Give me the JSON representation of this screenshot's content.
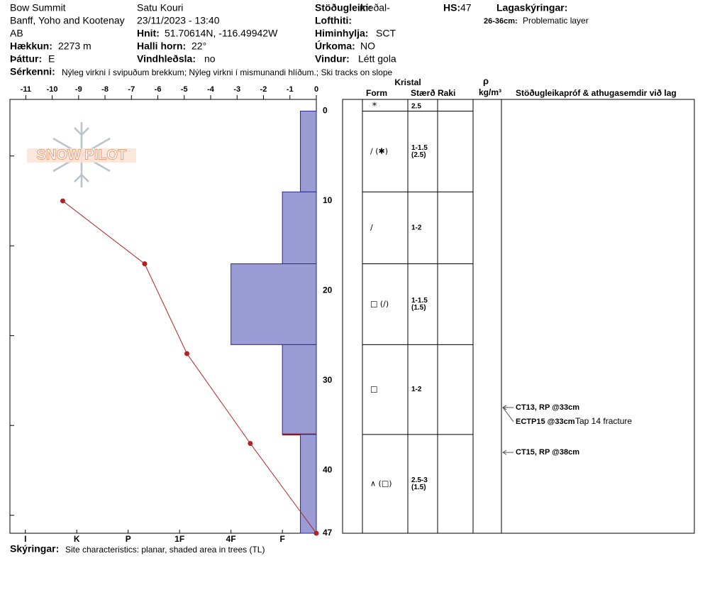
{
  "header": {
    "location": "Bow Summit",
    "region": "Banff, Yoho and Kootenay",
    "province": "AB",
    "elevation_label": "Hækkun:",
    "elevation": "2273 m",
    "aspect_label": "Þáttur:",
    "aspect": "E",
    "observer": "Satu Kouri",
    "datetime": "23/11/2023 - 13:40",
    "coords_label": "Hnit:",
    "coords": "51.70614N, -116.49942W",
    "slope_label": "Halli horn:",
    "slope": "22°",
    "wind_loading_label": "Vindhleðsla:",
    "wind_loading": "no",
    "stability_label": "Stöðugleiki:",
    "stability": "meðal-",
    "air_temp_label": "Lofthiti:",
    "sky_label": "Himinhylja:",
    "sky": "SCT",
    "precip_label": "Úrkoma:",
    "precip": "NO",
    "wind_label": "Vindur:",
    "wind": "Létt gola",
    "hs_label": "HS:",
    "hs": "47",
    "legend_label": "Lagaskýringar:",
    "legend_range": "26-36cm:",
    "legend_text": "Problematic layer",
    "features_label": "Sérkenni:",
    "features": "Nýleg virkni í svipuðum brekkum; Nýleg virkni í mismunandi hlíðum.; Ski tracks on slope",
    "notes_label": "Skýringar:",
    "notes": "Site characteristics: planar, shaded area in trees (TL)",
    "logo": "SNOW PILOT"
  },
  "chart_data": {
    "type": "snow_profile",
    "xlim": [
      -11.6,
      0
    ],
    "xticks": [
      -11,
      -10,
      -9,
      -8,
      -7,
      -6,
      -5,
      -4,
      -3,
      -2,
      -1,
      0
    ],
    "ylim": [
      -1.3,
      47
    ],
    "yticks": [
      0,
      10,
      20,
      30,
      40,
      47
    ],
    "yminor": [
      5,
      15,
      25,
      35,
      45
    ],
    "hardness_lim": [
      0.34,
      6.3
    ],
    "hardness_ticks": [
      {
        "value": 6,
        "label": "I"
      },
      {
        "value": 5,
        "label": "K"
      },
      {
        "value": 4,
        "label": "P"
      },
      {
        "value": 3,
        "label": "1F"
      },
      {
        "value": 2,
        "label": "4F"
      },
      {
        "value": 1,
        "label": "F"
      }
    ],
    "temperature": {
      "color": "#b22222",
      "depths": [
        10,
        17,
        27,
        37,
        47
      ],
      "values": [
        -9.6,
        -6.5,
        -4.9,
        -2.5,
        0
      ]
    },
    "layer_color": "#9b9bd6",
    "problem_color": "#8b1a1a",
    "layers": [
      {
        "top": 0,
        "bottom": 9,
        "hardness": 0.65,
        "form": "∕ (✱)",
        "size": [
          "1-1.5",
          "(2.5)"
        ]
      },
      {
        "top": 9,
        "bottom": 17,
        "hardness": 1,
        "form": "∕",
        "size": [
          "1-2"
        ]
      },
      {
        "top": 17,
        "bottom": 26,
        "hardness": 2,
        "form": "□ (∕)",
        "size": [
          "1-1.5",
          "(1.5)"
        ]
      },
      {
        "top": 26,
        "bottom": 36,
        "hardness": 1,
        "form": "□",
        "size": [
          "1-2"
        ],
        "problematic": true
      },
      {
        "top": 36,
        "bottom": 47,
        "hardness": 0.65,
        "form": "∧ (□)",
        "size": [
          "2.5-3",
          "(1.5)"
        ]
      }
    ],
    "surface": {
      "form": "*",
      "size": "2.5"
    },
    "table_headers": {
      "crystal": "Kristal",
      "form": "Form",
      "size": "Stærð",
      "moisture": "Raki",
      "rho": "ρ",
      "density": "kg/m³",
      "tests": "Stöðugleikapróf & athugasemdir við lag"
    },
    "tests": [
      {
        "depth": 33,
        "text": "CT13, RP @33cm"
      },
      {
        "depth": 33,
        "text": "ECTP15 @33cm",
        "comment": "Tap 14 fracture"
      },
      {
        "depth": 38,
        "text": "CT15, RP @38cm"
      }
    ]
  }
}
